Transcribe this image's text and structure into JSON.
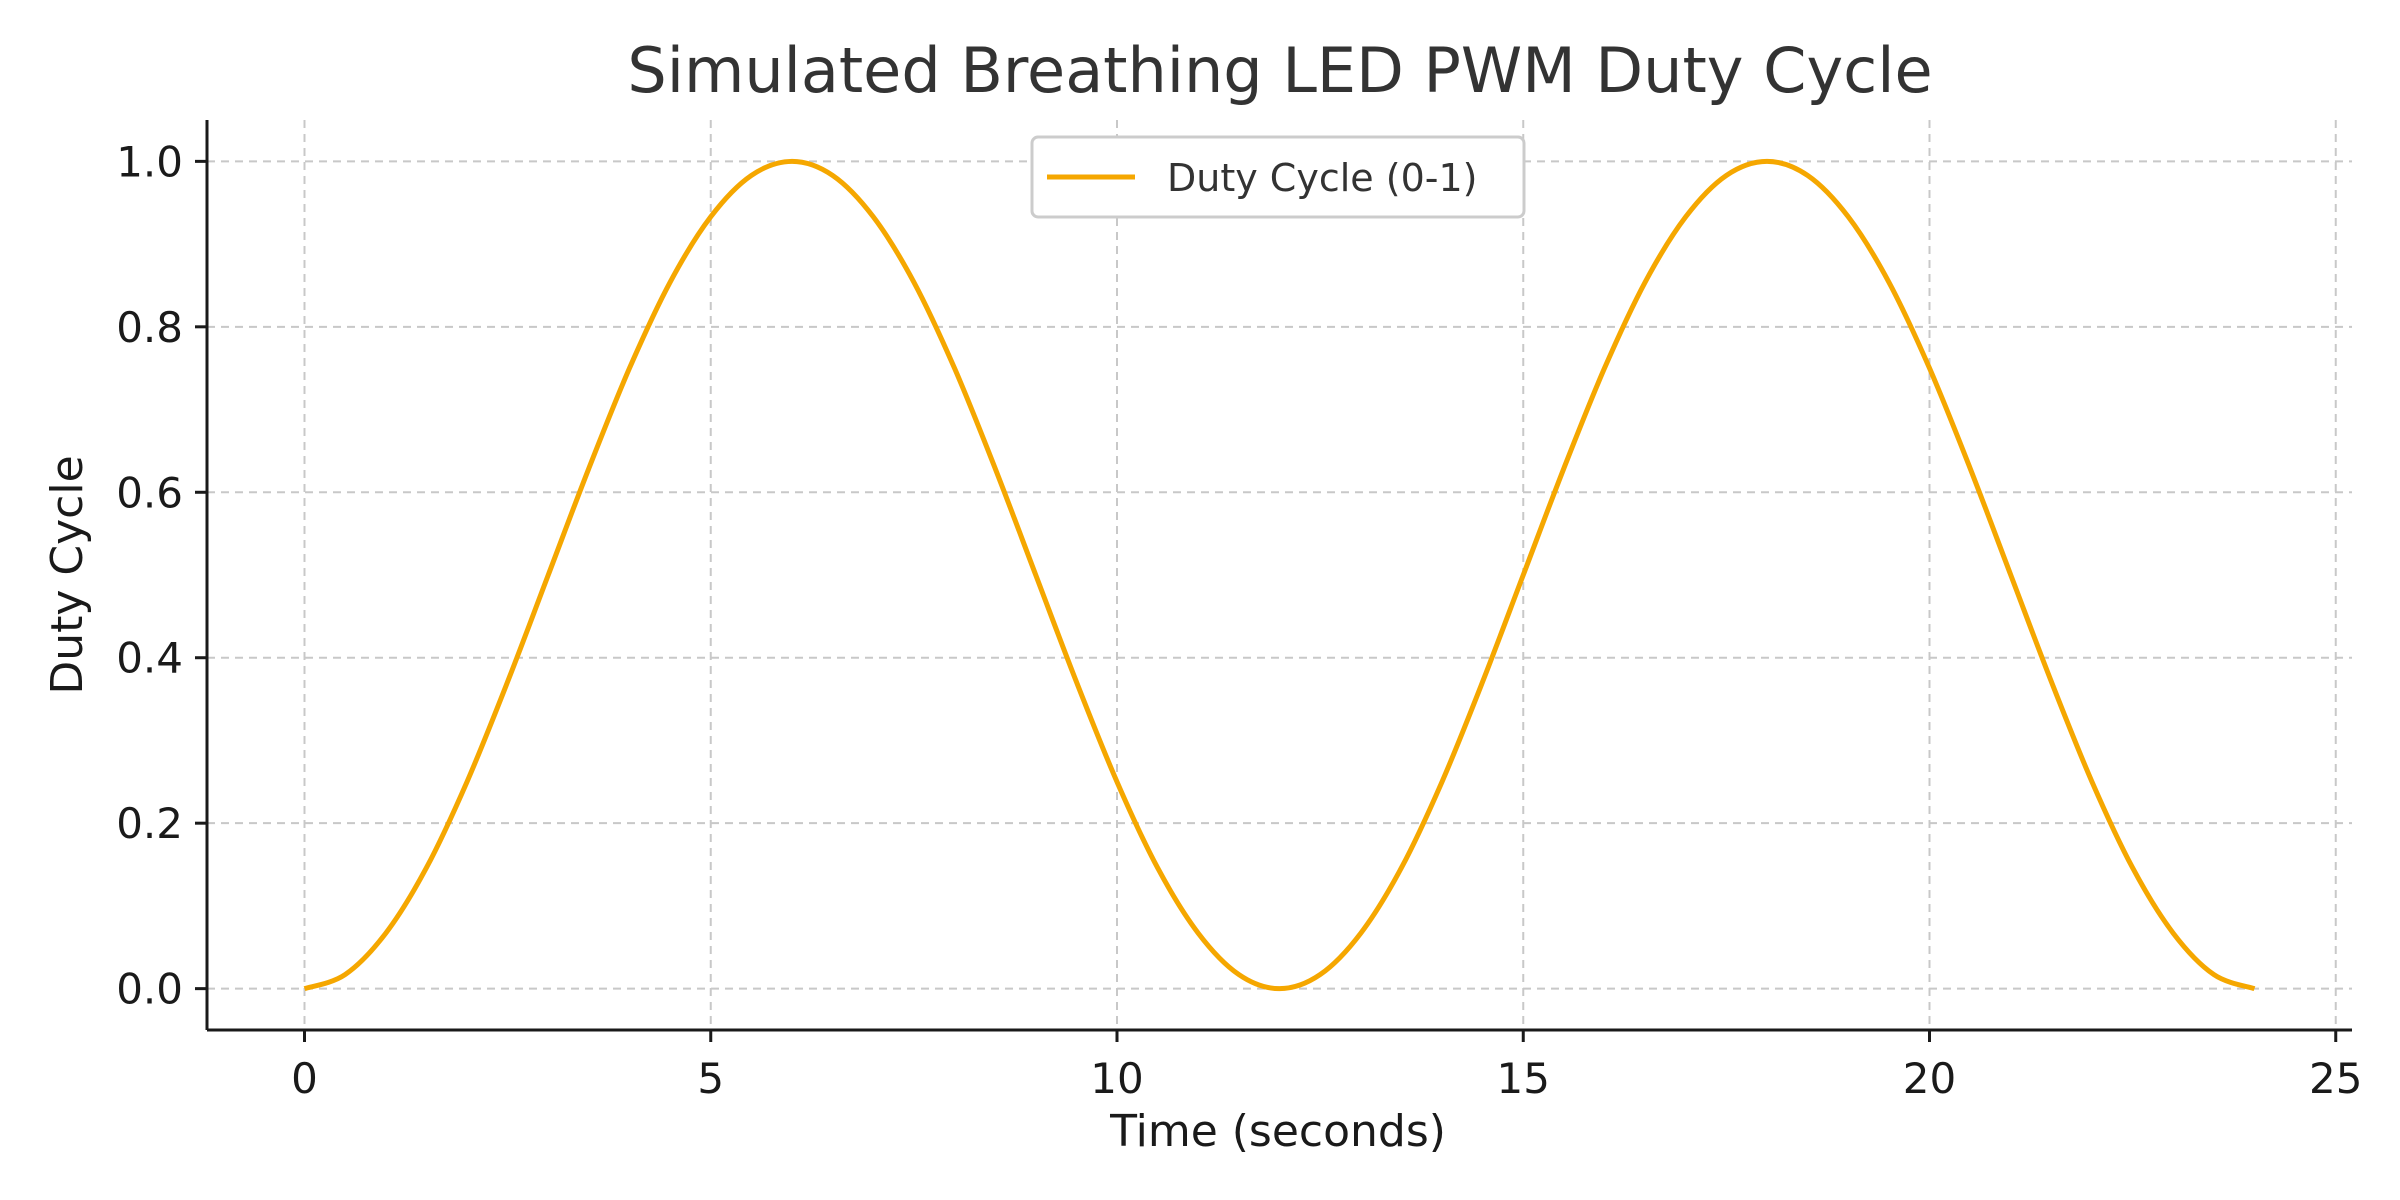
{
  "chart_data": {
    "type": "line",
    "title": "Simulated Breathing LED PWM Duty Cycle",
    "xlabel": "Time (seconds)",
    "ylabel": "Duty Cycle",
    "xlim": [
      -1.2,
      25.2
    ],
    "ylim": [
      -0.05,
      1.05
    ],
    "xticks": [
      0,
      5,
      10,
      15,
      20,
      25
    ],
    "yticks": [
      0.0,
      0.2,
      0.4,
      0.6,
      0.8,
      1.0
    ],
    "xtick_labels": [
      "0",
      "5",
      "10",
      "15",
      "20",
      "25"
    ],
    "ytick_labels": [
      "0.0",
      "0.2",
      "0.4",
      "0.6",
      "0.8",
      "1.0"
    ],
    "grid": true,
    "legend_position": "top-center",
    "series": [
      {
        "name": "Duty Cycle (0-1)",
        "color": "#f5a700",
        "x": [
          0,
          0.5,
          1,
          1.5,
          2,
          2.5,
          3,
          3.5,
          4,
          4.5,
          5,
          5.5,
          6,
          6.5,
          7,
          7.5,
          8,
          8.5,
          9,
          9.5,
          10,
          10.5,
          11,
          11.5,
          12,
          12.5,
          13,
          13.5,
          14,
          14.5,
          15,
          15.5,
          16,
          16.5,
          17,
          17.5,
          18,
          18.5,
          19,
          19.5,
          20,
          20.5,
          21,
          21.5,
          22,
          22.5,
          23,
          23.5,
          24
        ],
        "y": [
          0.0,
          0.017,
          0.067,
          0.146,
          0.25,
          0.371,
          0.5,
          0.629,
          0.75,
          0.854,
          0.933,
          0.983,
          1.0,
          0.983,
          0.933,
          0.854,
          0.75,
          0.629,
          0.5,
          0.371,
          0.25,
          0.146,
          0.067,
          0.017,
          0.0,
          0.017,
          0.067,
          0.146,
          0.25,
          0.371,
          0.5,
          0.629,
          0.75,
          0.854,
          0.933,
          0.983,
          1.0,
          0.983,
          0.933,
          0.854,
          0.75,
          0.629,
          0.5,
          0.371,
          0.25,
          0.146,
          0.067,
          0.017,
          0.0
        ]
      }
    ]
  }
}
